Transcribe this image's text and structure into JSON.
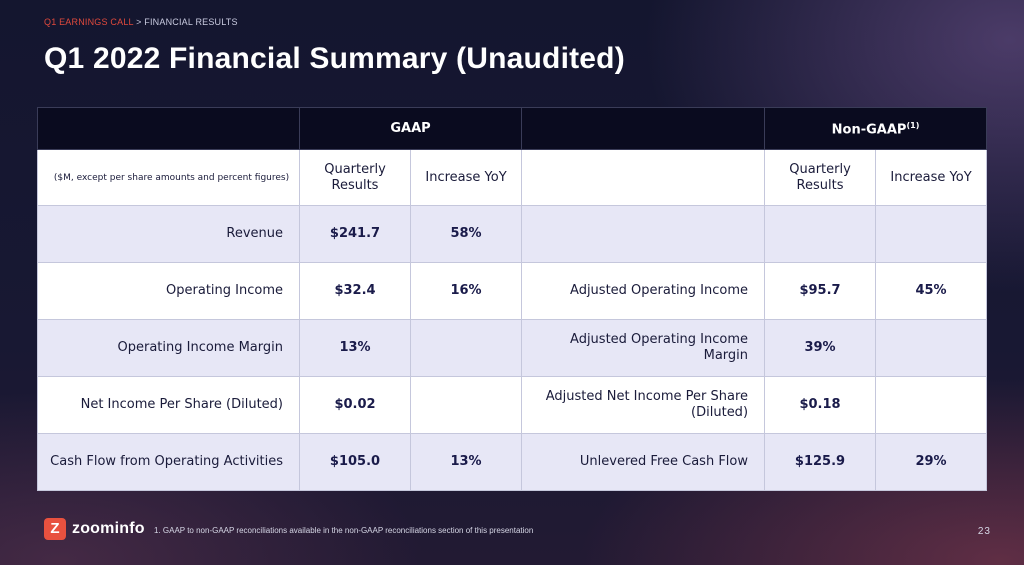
{
  "breadcrumb": {
    "section": "Q1 EARNINGS CALL",
    "separator": ">",
    "page": "FINANCIAL RESULTS"
  },
  "title": "Q1 2022 Financial Summary (Unaudited)",
  "table": {
    "gaap_header": "GAAP",
    "nongaap_header": "Non-GAAP",
    "nongaap_footnote_marker": "(1)",
    "units_note": "($M, except per share amounts and percent figures)",
    "col_quarterly": "Quarterly Results",
    "col_increase": "Increase YoY",
    "rows": [
      {
        "label": "Revenue",
        "gaap_value": "$241.7",
        "gaap_yoy": "58%",
        "ng_label": "",
        "ng_value": "",
        "ng_yoy": ""
      },
      {
        "label": "Operating Income",
        "gaap_value": "$32.4",
        "gaap_yoy": "16%",
        "ng_label": "Adjusted Operating Income",
        "ng_value": "$95.7",
        "ng_yoy": "45%"
      },
      {
        "label": "Operating Income Margin",
        "gaap_value": "13%",
        "gaap_yoy": "",
        "ng_label": "Adjusted Operating Income Margin",
        "ng_value": "39%",
        "ng_yoy": ""
      },
      {
        "label": "Net Income Per Share (Diluted)",
        "gaap_value": "$0.02",
        "gaap_yoy": "",
        "ng_label": "Adjusted Net Income Per Share (Diluted)",
        "ng_value": "$0.18",
        "ng_yoy": ""
      },
      {
        "label": "Cash Flow from Operating Activities",
        "gaap_value": "$105.0",
        "gaap_yoy": "13%",
        "ng_label": "Unlevered Free Cash Flow",
        "ng_value": "$125.9",
        "ng_yoy": "29%"
      }
    ]
  },
  "footer": {
    "logo_mark": "Z",
    "logo_text": "zoominfo",
    "footnote": "1.  GAAP to non-GAAP reconciliations available in the non-GAAP reconciliations section of this presentation",
    "page_number": "23"
  },
  "colors": {
    "accent": "#e0493c",
    "header_bg": "#0a0b1f",
    "shaded_row": "#e7e7f6"
  }
}
